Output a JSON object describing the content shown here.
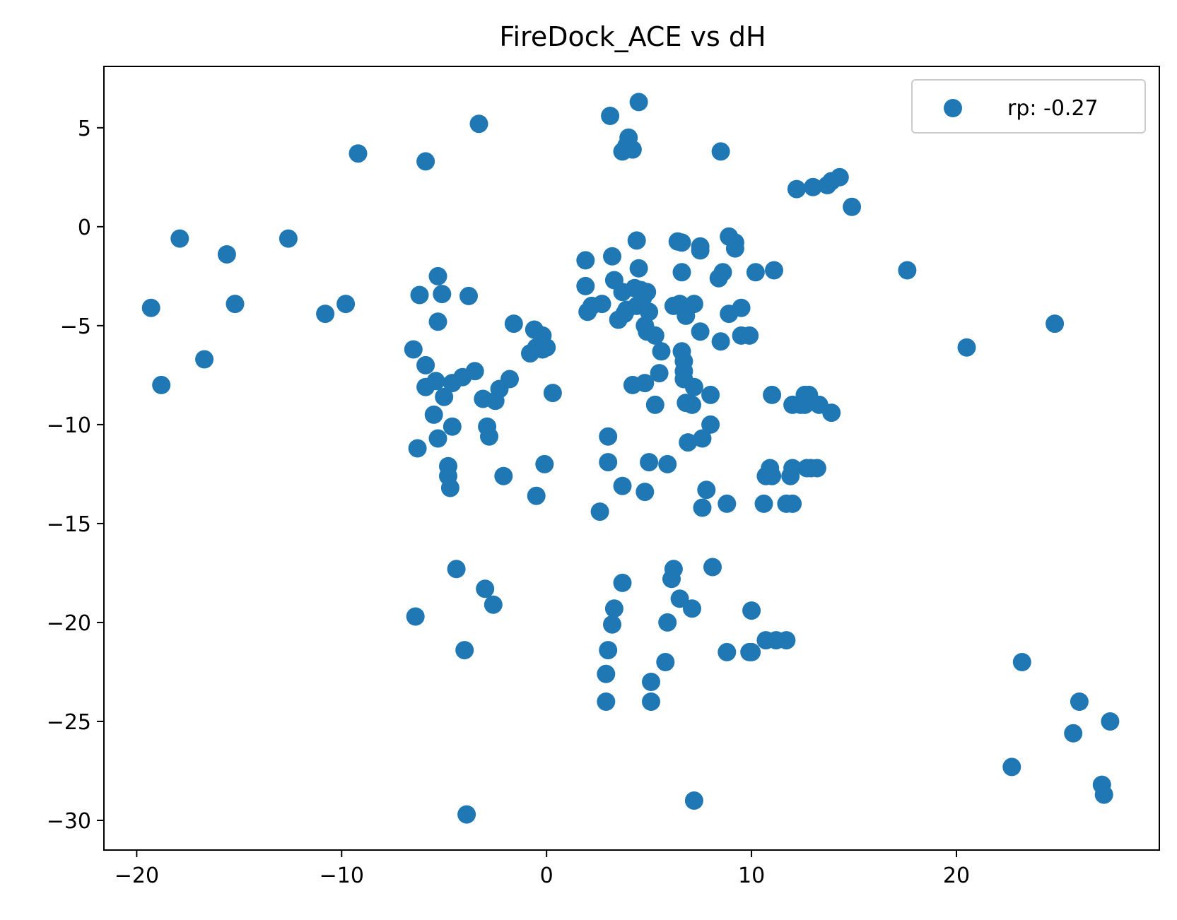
{
  "chart_data": {
    "type": "scatter",
    "title": "FireDock_ACE vs dH",
    "xlabel": "",
    "ylabel": "",
    "xlim": [
      -21.6,
      29.9
    ],
    "ylim": [
      -31.5,
      8.1
    ],
    "xticks": [
      -20,
      -10,
      0,
      10,
      20
    ],
    "xtick_labels": [
      "−20",
      "−10",
      "0",
      "10",
      "20"
    ],
    "yticks": [
      5,
      0,
      -5,
      -10,
      -15,
      -20,
      -25,
      -30
    ],
    "ytick_labels": [
      "5",
      "0",
      "−5",
      "−10",
      "−15",
      "−20",
      "−25",
      "−30"
    ],
    "grid": false,
    "legend_position": "top-right",
    "marker_color": "#1f77b4",
    "series": [
      {
        "name": "rp: -0.27",
        "points": [
          [
            -19.3,
            -4.1
          ],
          [
            -18.8,
            -8.0
          ],
          [
            -17.9,
            -0.6
          ],
          [
            -16.7,
            -6.7
          ],
          [
            -15.6,
            -1.4
          ],
          [
            -15.2,
            -3.9
          ],
          [
            -12.6,
            -0.6
          ],
          [
            -10.8,
            -4.4
          ],
          [
            -9.8,
            -3.9
          ],
          [
            -9.2,
            3.7
          ],
          [
            -6.5,
            -6.2
          ],
          [
            -6.3,
            -11.2
          ],
          [
            -6.2,
            -3.45
          ],
          [
            -6.4,
            -19.7
          ],
          [
            -5.9,
            3.3
          ],
          [
            -5.9,
            -7.0
          ],
          [
            -5.9,
            -8.1
          ],
          [
            -5.5,
            -9.5
          ],
          [
            -5.4,
            -7.8
          ],
          [
            -5.3,
            -2.5
          ],
          [
            -5.3,
            -10.7
          ],
          [
            -5.3,
            -4.8
          ],
          [
            -5.1,
            -3.4
          ],
          [
            -5.0,
            -8.6
          ],
          [
            -4.8,
            -12.1
          ],
          [
            -4.8,
            -12.6
          ],
          [
            -4.7,
            -13.2
          ],
          [
            -4.6,
            -10.1
          ],
          [
            -4.6,
            -7.9
          ],
          [
            -4.4,
            -17.3
          ],
          [
            -4.1,
            -7.6
          ],
          [
            -4.0,
            -21.4
          ],
          [
            -3.9,
            -29.7
          ],
          [
            -3.8,
            -3.5
          ],
          [
            -3.5,
            -7.3
          ],
          [
            -3.3,
            5.2
          ],
          [
            -3.1,
            -8.7
          ],
          [
            -3.0,
            -18.3
          ],
          [
            -2.9,
            -10.1
          ],
          [
            -2.8,
            -10.6
          ],
          [
            -2.6,
            -19.1
          ],
          [
            -2.5,
            -8.8
          ],
          [
            -2.3,
            -8.2
          ],
          [
            -2.1,
            -12.6
          ],
          [
            -1.8,
            -7.7
          ],
          [
            -1.6,
            -4.9
          ],
          [
            -0.8,
            -6.4
          ],
          [
            -0.6,
            -5.2
          ],
          [
            -0.5,
            -6.1
          ],
          [
            -0.5,
            -13.6
          ],
          [
            -0.2,
            -5.5
          ],
          [
            -0.2,
            -6.2
          ],
          [
            -0.1,
            -12.0
          ],
          [
            0.0,
            -6.1
          ],
          [
            0.3,
            -8.4
          ],
          [
            1.9,
            -1.7
          ],
          [
            1.9,
            -3.0
          ],
          [
            2.0,
            -4.3
          ],
          [
            2.2,
            -4.0
          ],
          [
            2.6,
            -14.4
          ],
          [
            2.7,
            -3.9
          ],
          [
            2.9,
            -24.0
          ],
          [
            2.9,
            -22.6
          ],
          [
            3.0,
            -21.4
          ],
          [
            3.0,
            -11.9
          ],
          [
            3.0,
            -10.6
          ],
          [
            3.1,
            5.6
          ],
          [
            3.2,
            -20.1
          ],
          [
            3.3,
            -19.3
          ],
          [
            3.2,
            -1.5
          ],
          [
            3.3,
            -2.7
          ],
          [
            3.5,
            -4.7
          ],
          [
            3.7,
            -3.3
          ],
          [
            3.8,
            -4.4
          ],
          [
            3.9,
            -4.2
          ],
          [
            3.7,
            -13.1
          ],
          [
            3.7,
            -18.0
          ],
          [
            3.7,
            3.8
          ],
          [
            3.9,
            4.1
          ],
          [
            4.0,
            4.5
          ],
          [
            4.2,
            3.9
          ],
          [
            4.2,
            -8.0
          ],
          [
            4.3,
            -3.1
          ],
          [
            4.4,
            -4.0
          ],
          [
            4.4,
            -0.7
          ],
          [
            4.5,
            6.3
          ],
          [
            4.5,
            -2.1
          ],
          [
            4.6,
            -3.2
          ],
          [
            4.7,
            -3.6
          ],
          [
            4.8,
            -5.0
          ],
          [
            4.8,
            -7.9
          ],
          [
            4.8,
            -13.4
          ],
          [
            4.9,
            -3.3
          ],
          [
            4.9,
            -5.3
          ],
          [
            5.0,
            -4.3
          ],
          [
            5.0,
            -11.9
          ],
          [
            5.1,
            -23.0
          ],
          [
            5.1,
            -24.0
          ],
          [
            5.3,
            -5.5
          ],
          [
            5.3,
            -9.0
          ],
          [
            5.5,
            -7.4
          ],
          [
            5.6,
            -6.3
          ],
          [
            5.8,
            -22.0
          ],
          [
            5.9,
            -20.0
          ],
          [
            5.9,
            -12.0
          ],
          [
            6.1,
            -17.8
          ],
          [
            6.2,
            -17.3
          ],
          [
            6.2,
            -4.0
          ],
          [
            6.4,
            -0.75
          ],
          [
            6.5,
            -18.8
          ],
          [
            6.5,
            -3.9
          ],
          [
            6.6,
            -0.8
          ],
          [
            6.6,
            -2.3
          ],
          [
            6.6,
            -6.3
          ],
          [
            6.7,
            -6.8
          ],
          [
            6.7,
            -7.3
          ],
          [
            6.7,
            -7.7
          ],
          [
            6.8,
            -4.5
          ],
          [
            6.8,
            -8.9
          ],
          [
            6.9,
            -10.9
          ],
          [
            7.1,
            -9.0
          ],
          [
            7.2,
            -3.9
          ],
          [
            7.2,
            -8.1
          ],
          [
            7.2,
            -29.0
          ],
          [
            7.1,
            -19.3
          ],
          [
            7.5,
            -1.0
          ],
          [
            7.5,
            -1.2
          ],
          [
            7.5,
            -5.3
          ],
          [
            7.6,
            -14.2
          ],
          [
            7.6,
            -10.7
          ],
          [
            7.8,
            -13.3
          ],
          [
            8.0,
            -10.0
          ],
          [
            8.0,
            -8.5
          ],
          [
            8.1,
            -17.2
          ],
          [
            8.4,
            -2.6
          ],
          [
            8.5,
            3.8
          ],
          [
            8.5,
            -5.8
          ],
          [
            8.6,
            -2.3
          ],
          [
            8.8,
            -21.5
          ],
          [
            8.8,
            -14.0
          ],
          [
            8.9,
            -0.5
          ],
          [
            8.9,
            -4.4
          ],
          [
            9.2,
            -0.8
          ],
          [
            9.2,
            -1.1
          ],
          [
            9.5,
            -4.1
          ],
          [
            9.5,
            -5.5
          ],
          [
            9.9,
            -5.5
          ],
          [
            9.9,
            -21.5
          ],
          [
            10.0,
            -21.5
          ],
          [
            10.0,
            -19.4
          ],
          [
            10.2,
            -2.3
          ],
          [
            10.6,
            -14.0
          ],
          [
            10.7,
            -20.9
          ],
          [
            10.7,
            -12.6
          ],
          [
            10.9,
            -12.2
          ],
          [
            11.0,
            -12.6
          ],
          [
            11.0,
            -8.5
          ],
          [
            11.1,
            -2.2
          ],
          [
            11.2,
            -20.9
          ],
          [
            11.7,
            -20.9
          ],
          [
            11.7,
            -14.0
          ],
          [
            11.9,
            -12.6
          ],
          [
            12.0,
            -12.2
          ],
          [
            12.0,
            -14.0
          ],
          [
            12.0,
            -9.0
          ],
          [
            12.2,
            1.9
          ],
          [
            12.4,
            -9.0
          ],
          [
            12.6,
            -8.5
          ],
          [
            12.6,
            -9.0
          ],
          [
            12.7,
            -12.2
          ],
          [
            12.8,
            -8.5
          ],
          [
            12.9,
            -12.2
          ],
          [
            13.0,
            2.0
          ],
          [
            13.2,
            -12.2
          ],
          [
            13.3,
            -9.0
          ],
          [
            13.7,
            2.1
          ],
          [
            13.9,
            2.3
          ],
          [
            13.9,
            -9.4
          ],
          [
            14.3,
            2.5
          ],
          [
            14.9,
            1.0
          ],
          [
            17.6,
            -2.2
          ],
          [
            20.5,
            -6.1
          ],
          [
            22.7,
            -27.3
          ],
          [
            23.2,
            -22.0
          ],
          [
            24.8,
            -4.9
          ],
          [
            25.7,
            -25.6
          ],
          [
            26.0,
            -24.0
          ],
          [
            27.1,
            -28.2
          ],
          [
            27.2,
            -28.7
          ],
          [
            27.5,
            -25.0
          ]
        ]
      }
    ]
  }
}
